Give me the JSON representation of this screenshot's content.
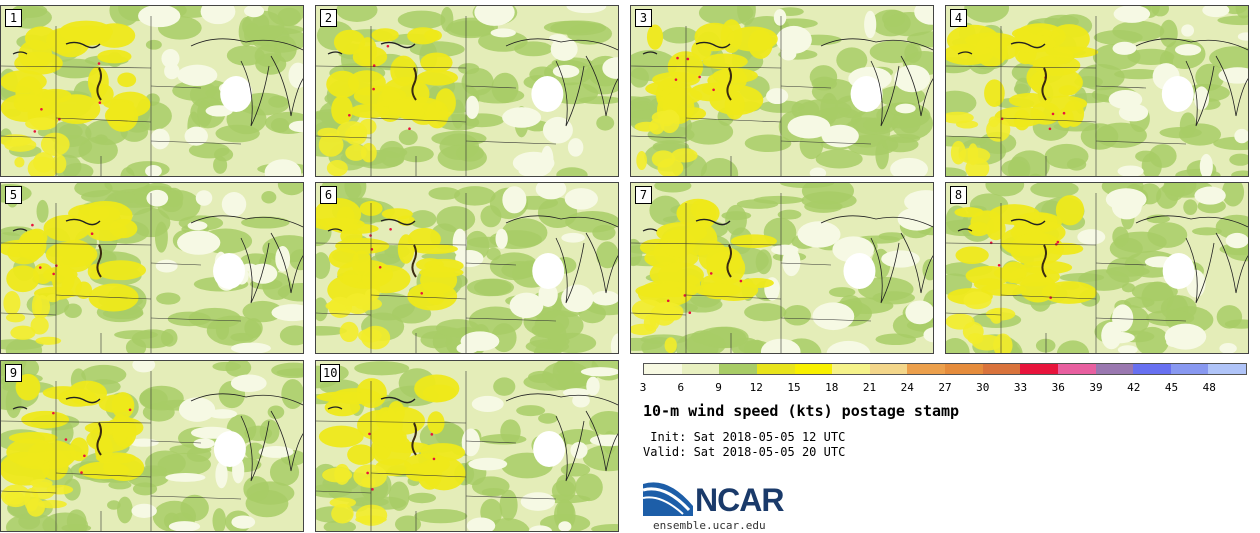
{
  "members": [
    "1",
    "2",
    "3",
    "4",
    "5",
    "6",
    "7",
    "8",
    "9",
    "10"
  ],
  "colorbar": {
    "colors": [
      "#f7f9e2",
      "#e8f0c0",
      "#a8cc66",
      "#e8e41c",
      "#f8f000",
      "#f5f28a",
      "#f3d68a",
      "#eca04c",
      "#e58c3c",
      "#d9733c",
      "#e8143c",
      "#e860a0",
      "#9a78b0",
      "#6870f0",
      "#8898f0",
      "#b0c4f8"
    ],
    "ticks": [
      "3",
      "6",
      "9",
      "12",
      "15",
      "18",
      "21",
      "24",
      "27",
      "30",
      "33",
      "36",
      "39",
      "42",
      "45",
      "48"
    ]
  },
  "title": "10-m wind speed (kts) postage stamp",
  "init": " Init: Sat 2018-05-05 12 UTC",
  "valid": "Valid: Sat 2018-05-05 20 UTC",
  "logo": {
    "name": "NCAR",
    "site": "ensemble.ucar.edu"
  }
}
